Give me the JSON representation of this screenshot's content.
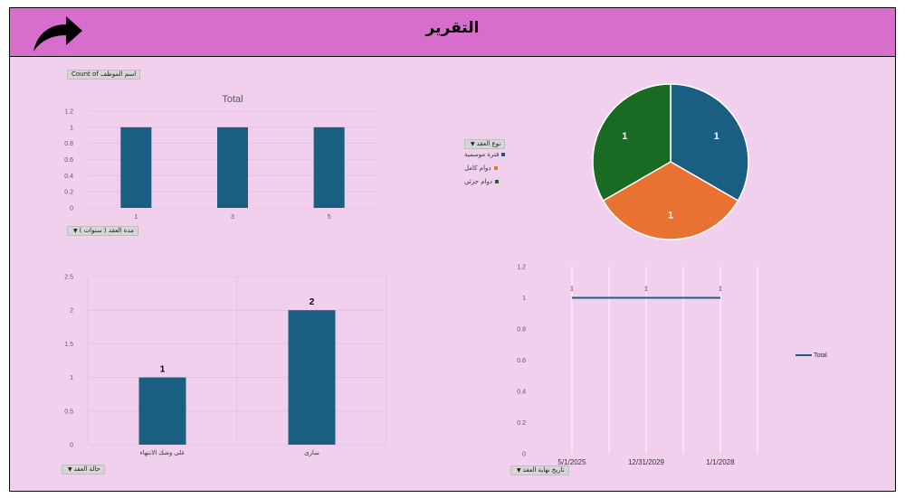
{
  "header": {
    "title": "التقرير",
    "back_icon": "curved-arrow-icon"
  },
  "colors": {
    "header_bg": "#d86ecc",
    "panel_bg": "#f1d0ed",
    "blue": "#1a5f82",
    "orange": "#e97132",
    "green": "#196b24"
  },
  "chart1": {
    "field_chip": "Count of اسم الموظف",
    "axis_chip": "مدة العقد ( سنوات )",
    "chart_data": {
      "type": "bar",
      "title": "Total",
      "categories": [
        "1",
        "3",
        "5"
      ],
      "values": [
        1,
        1,
        1
      ],
      "ylim": [
        0,
        1.2
      ],
      "yticks": [
        "0",
        "0.2",
        "0.4",
        "0.6",
        "0.8",
        "1",
        "1.2"
      ],
      "grid": true
    }
  },
  "chart2": {
    "legend_chip": "نوع العقد",
    "chart_data": {
      "type": "pie",
      "labels": [
        "فترة موسمية",
        "دوام كامل",
        "دوام جزئي"
      ],
      "values": [
        1,
        1,
        1
      ],
      "data_labels": [
        "1",
        "1",
        "1"
      ],
      "colors": [
        "#1a5f82",
        "#e97132",
        "#196b24"
      ],
      "legend": "left"
    }
  },
  "chart3": {
    "axis_chip": "حالة العقد",
    "chart_data": {
      "type": "bar",
      "categories": [
        "على وشك الانتهاء",
        "سارى"
      ],
      "values": [
        1,
        2
      ],
      "data_labels": [
        "1",
        "2"
      ],
      "ylim": [
        0,
        2.5
      ],
      "yticks": [
        "0",
        "0.5",
        "1",
        "1.5",
        "2",
        "2.5"
      ],
      "grid": true
    }
  },
  "chart4": {
    "axis_chip": "تاريخ نهاية العقد",
    "chart_data": {
      "type": "line",
      "categories": [
        "5/1/2025",
        "12/31/2029",
        "1/1/2028"
      ],
      "series": [
        {
          "name": "Total",
          "values": [
            1,
            1,
            1
          ]
        }
      ],
      "data_labels": [
        "1",
        "1",
        "1"
      ],
      "ylim": [
        0,
        1.2
      ],
      "yticks": [
        "0",
        "0.2",
        "0.4",
        "0.6",
        "0.8",
        "1",
        "1.2"
      ],
      "grid": true,
      "legend": "right"
    }
  }
}
